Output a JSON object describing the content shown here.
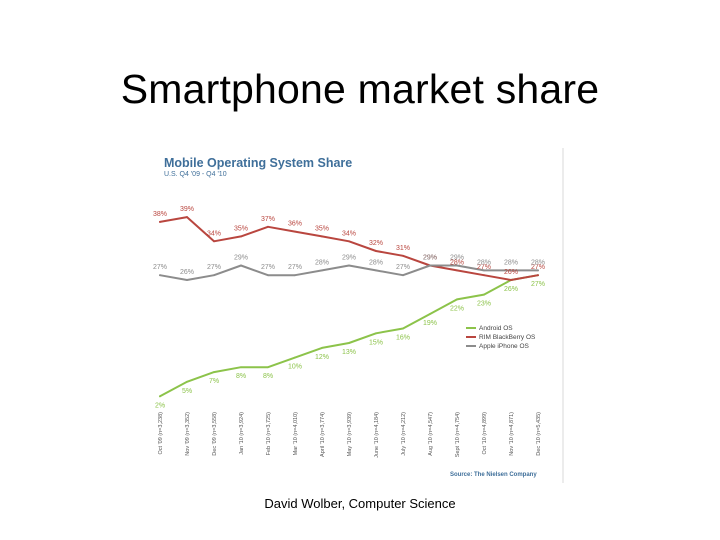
{
  "slide": {
    "title": "Smartphone market share",
    "footer": "David Wolber, Computer Science"
  },
  "chart_data": {
    "type": "line",
    "title": "Mobile Operating System Share",
    "subtitle": "U.S. Q4 '09 - Q4 '10",
    "source": "Source: The Nielsen Company",
    "x": [
      "Oct '09 (n=3,238)",
      "Nov '09 (n=3,352)",
      "Dec '09 (n=3,558)",
      "Jan '10 (n=3,924)",
      "Feb '10 (n=3,725)",
      "Mar '10 (n=4,010)",
      "April '10 (n=3,774)",
      "May '10 (n=3,939)",
      "June '10 (n=4,184)",
      "July '10 (n=4,212)",
      "Aug '10 (n=4,547)",
      "Sept '10 (n=4,754)",
      "Oct '10 (n=4,899)",
      "Nov '10 (n=4,871)",
      "Dec '10 (n=5,435)"
    ],
    "ylim": [
      0,
      45
    ],
    "legend_position": "right",
    "series": [
      {
        "name": "Android OS",
        "color": "#8cc34a",
        "values": [
          2,
          5,
          7,
          8,
          8,
          10,
          12,
          13,
          15,
          16,
          19,
          22,
          23,
          26,
          27
        ],
        "labels": [
          "2%",
          "5%",
          "7%",
          "8%",
          "8%",
          "10%",
          "12%",
          "13%",
          "15%",
          "16%",
          "19%",
          "22%",
          "23%",
          "26%",
          "27%"
        ]
      },
      {
        "name": "RIM BlackBerry OS",
        "color": "#b9463f",
        "values": [
          38,
          39,
          34,
          35,
          37,
          36,
          35,
          34,
          32,
          31,
          29,
          28,
          27,
          26,
          27
        ],
        "labels": [
          "38%",
          "39%",
          "34%",
          "35%",
          "37%",
          "36%",
          "35%",
          "34%",
          "32%",
          "31%",
          "29%",
          "28%",
          "27%",
          "26%",
          "27%"
        ]
      },
      {
        "name": "Apple iPhone OS",
        "color": "#8c8c8c",
        "values": [
          27,
          26,
          27,
          29,
          27,
          27,
          28,
          29,
          28,
          27,
          29,
          29,
          28,
          28,
          28
        ],
        "labels": [
          "27%",
          "26%",
          "27%",
          "29%",
          "27%",
          "27%",
          "28%",
          "29%",
          "28%",
          "27%",
          "29%",
          "29%",
          "28%",
          "28%",
          "28%"
        ]
      }
    ]
  }
}
